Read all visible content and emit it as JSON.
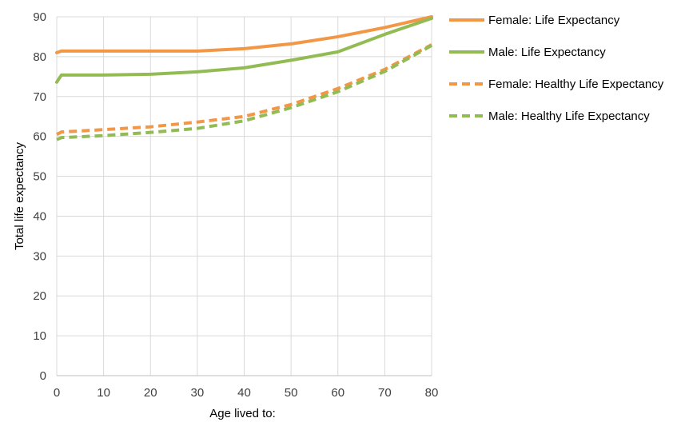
{
  "chart_data": {
    "type": "line",
    "title": "",
    "xlabel": "Age lived to:",
    "ylabel": "Total life expectancy",
    "xlim": [
      0,
      80
    ],
    "ylim": [
      0,
      90
    ],
    "x_ticks": [
      0,
      10,
      20,
      30,
      40,
      50,
      60,
      70,
      80
    ],
    "y_ticks": [
      0,
      10,
      20,
      30,
      40,
      50,
      60,
      70,
      80,
      90
    ],
    "grid": true,
    "legend_position": "right",
    "x": [
      0,
      1,
      10,
      20,
      30,
      40,
      50,
      60,
      70,
      80
    ],
    "series": [
      {
        "name": "Female: Life Expectancy",
        "color": "#f29746",
        "dash": "solid",
        "values": [
          81.0,
          81.4,
          81.4,
          81.4,
          81.4,
          82.0,
          83.2,
          85.0,
          87.3,
          90.0
        ]
      },
      {
        "name": "Male: Life Expectancy",
        "color": "#92bc53",
        "dash": "solid",
        "values": [
          73.6,
          75.4,
          75.4,
          75.6,
          76.2,
          77.2,
          79.1,
          81.2,
          85.6,
          89.6
        ]
      },
      {
        "name": "Female: Healthy Life Expectancy",
        "color": "#f29746",
        "dash": "dashed",
        "values": [
          60.5,
          61.1,
          61.7,
          62.4,
          63.6,
          65.0,
          68.0,
          72.0,
          76.8,
          83.0
        ]
      },
      {
        "name": "Male: Healthy Life Expectancy",
        "color": "#92bc53",
        "dash": "dashed",
        "values": [
          59.2,
          59.7,
          60.2,
          61.0,
          62.0,
          63.9,
          67.2,
          71.2,
          76.3,
          82.8
        ]
      }
    ]
  }
}
